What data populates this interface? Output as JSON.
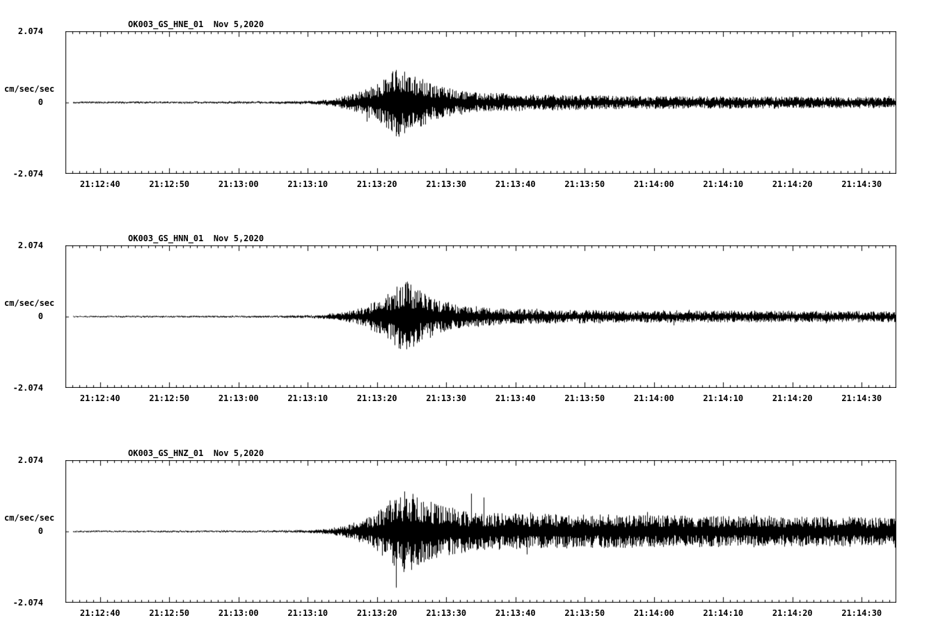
{
  "page": {
    "background": "#ffffff",
    "trace_color": "#000000"
  },
  "chart_data": [
    {
      "type": "line",
      "subtype": "seismogram",
      "title": "OK003_GS_HNE_01  Nov 5,2020",
      "ylabel": "cm/sec/sec",
      "ytick_labels": [
        "2.074",
        "0",
        "-2.074"
      ],
      "ylim": [
        -2.074,
        2.074
      ],
      "x_start": "21:12:35",
      "x_end": "21:14:35",
      "duration_seconds": 120,
      "first_tick_offset_seconds": 5,
      "x_tick_labels": [
        "21:12:40",
        "21:12:50",
        "21:13:00",
        "21:13:10",
        "21:13:20",
        "21:13:30",
        "21:13:40",
        "21:13:50",
        "21:14:00",
        "21:14:10",
        "21:14:20",
        "21:14:30"
      ],
      "envelope": [
        [
          0,
          0.025
        ],
        [
          30,
          0.03
        ],
        [
          36,
          0.05
        ],
        [
          39,
          0.12
        ],
        [
          42,
          0.3
        ],
        [
          45,
          0.55
        ],
        [
          47,
          0.9
        ],
        [
          48,
          1.1
        ],
        [
          50,
          0.9
        ],
        [
          53,
          0.55
        ],
        [
          56,
          0.4
        ],
        [
          60,
          0.3
        ],
        [
          68,
          0.24
        ],
        [
          80,
          0.2
        ],
        [
          95,
          0.18
        ],
        [
          110,
          0.17
        ],
        [
          120,
          0.16
        ]
      ],
      "spikes": {
        "after_seconds": 40,
        "probability": 0.01,
        "max_gain": 1.6
      }
    },
    {
      "type": "line",
      "subtype": "seismogram",
      "title": "OK003_GS_HNN_01  Nov 5,2020",
      "ylabel": "cm/sec/sec",
      "ytick_labels": [
        "2.074",
        "0",
        "-2.074"
      ],
      "ylim": [
        -2.074,
        2.074
      ],
      "x_start": "21:12:35",
      "x_end": "21:14:35",
      "duration_seconds": 120,
      "first_tick_offset_seconds": 5,
      "x_tick_labels": [
        "21:12:40",
        "21:12:50",
        "21:13:00",
        "21:13:10",
        "21:13:20",
        "21:13:30",
        "21:13:40",
        "21:13:50",
        "21:14:00",
        "21:14:10",
        "21:14:20",
        "21:14:30"
      ],
      "envelope": [
        [
          0,
          0.02
        ],
        [
          30,
          0.025
        ],
        [
          36,
          0.045
        ],
        [
          40,
          0.12
        ],
        [
          43,
          0.3
        ],
        [
          46,
          0.6
        ],
        [
          48,
          0.95
        ],
        [
          49,
          1.1
        ],
        [
          51,
          0.8
        ],
        [
          54,
          0.5
        ],
        [
          57,
          0.35
        ],
        [
          62,
          0.25
        ],
        [
          70,
          0.2
        ],
        [
          85,
          0.18
        ],
        [
          100,
          0.17
        ],
        [
          120,
          0.16
        ]
      ],
      "spikes": {
        "after_seconds": 42,
        "probability": 0.01,
        "max_gain": 1.6
      }
    },
    {
      "type": "line",
      "subtype": "seismogram",
      "title": "OK003_GS_HNZ_01  Nov 5,2020",
      "ylabel": "cm/sec/sec",
      "ytick_labels": [
        "2.074",
        "0",
        "-2.074"
      ],
      "ylim": [
        -2.074,
        2.074
      ],
      "x_start": "21:12:35",
      "x_end": "21:14:35",
      "duration_seconds": 120,
      "first_tick_offset_seconds": 5,
      "x_tick_labels": [
        "21:12:40",
        "21:12:50",
        "21:13:00",
        "21:13:10",
        "21:13:20",
        "21:13:30",
        "21:13:40",
        "21:13:50",
        "21:14:00",
        "21:14:10",
        "21:14:20",
        "21:14:30"
      ],
      "envelope": [
        [
          0,
          0.02
        ],
        [
          30,
          0.025
        ],
        [
          35,
          0.04
        ],
        [
          38,
          0.08
        ],
        [
          41,
          0.2
        ],
        [
          44,
          0.45
        ],
        [
          46,
          0.8
        ],
        [
          48,
          1.15
        ],
        [
          49,
          1.3
        ],
        [
          51,
          1.0
        ],
        [
          54,
          0.8
        ],
        [
          57,
          0.65
        ],
        [
          60,
          0.55
        ],
        [
          70,
          0.52
        ],
        [
          80,
          0.5
        ],
        [
          90,
          0.47
        ],
        [
          100,
          0.47
        ],
        [
          110,
          0.44
        ],
        [
          120,
          0.42
        ]
      ],
      "spikes": {
        "after_seconds": 41,
        "probability": 0.035,
        "max_gain": 2.4
      }
    }
  ]
}
